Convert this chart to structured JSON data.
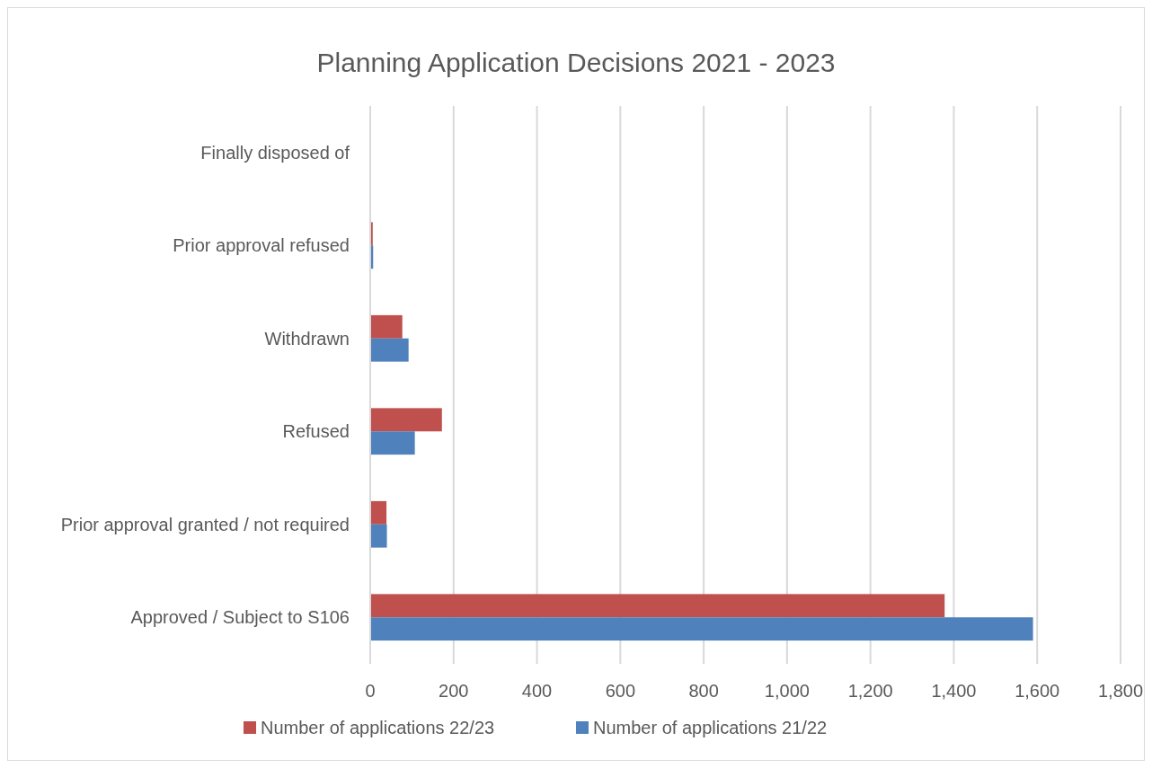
{
  "chart_data": {
    "type": "bar",
    "orientation": "horizontal",
    "title": "Planning Application Decisions 2021 - 2023",
    "categories": [
      "Finally disposed of",
      "Prior approval refused",
      "Withdrawn",
      "Refused",
      "Prior approval granted / not required",
      "Approved / Subject to S106"
    ],
    "series": [
      {
        "name": "Number of applications 22/23",
        "color": "#c0504d",
        "values": [
          0,
          6,
          77,
          172,
          39,
          1378
        ]
      },
      {
        "name": "Number of applications 21/22",
        "color": "#4f81bd",
        "values": [
          0,
          7,
          92,
          107,
          40,
          1590
        ]
      }
    ],
    "xlim": [
      0,
      1800
    ],
    "xticks": [
      0,
      {
        "value": 200,
        "label": "200"
      },
      {
        "value": 400,
        "label": "400"
      },
      {
        "value": 600,
        "label": "600"
      },
      {
        "value": 800,
        "label": "800"
      },
      {
        "value": 1000,
        "label": "1,000"
      },
      {
        "value": 1200,
        "label": "1,200"
      },
      {
        "value": 1400,
        "label": "1,400"
      },
      {
        "value": 1600,
        "label": "1,600"
      },
      {
        "value": 1800,
        "label": "1,800"
      }
    ],
    "grid": "x",
    "legend": "bottom"
  }
}
